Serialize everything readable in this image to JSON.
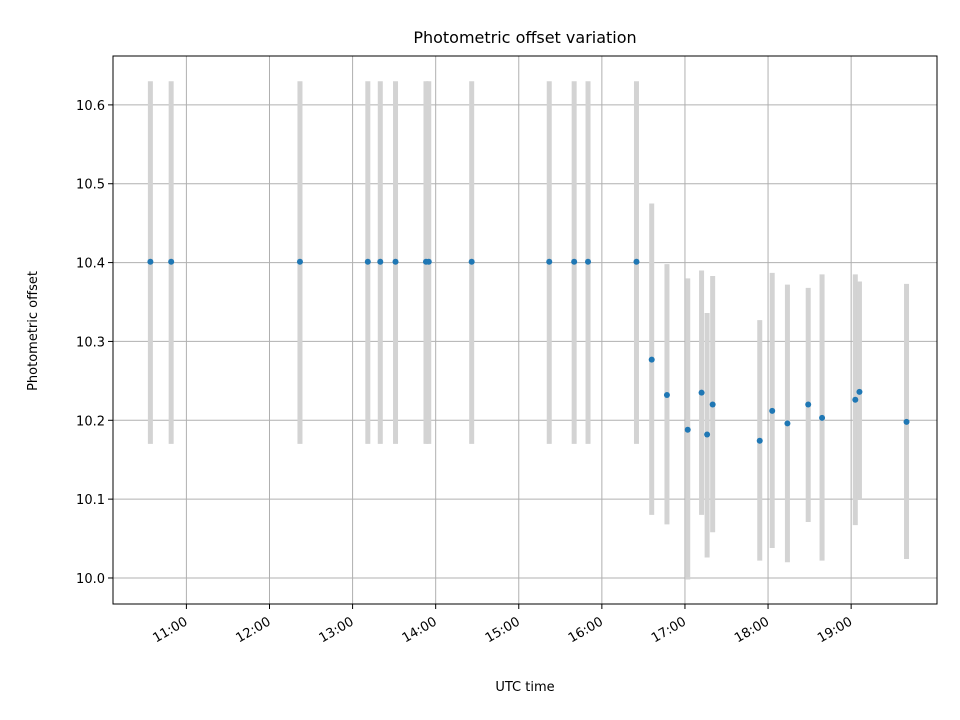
{
  "chart_data": {
    "type": "scatter",
    "title": "Photometric offset variation",
    "xlabel": "UTC time",
    "ylabel": "Photometric offset",
    "x_ticks": [
      "11:00",
      "12:00",
      "13:00",
      "14:00",
      "15:00",
      "16:00",
      "17:00",
      "18:00",
      "19:00"
    ],
    "y_ticks": [
      "10.0",
      "10.1",
      "10.2",
      "10.3",
      "10.4",
      "10.5",
      "10.6"
    ],
    "xlim": [
      "10:07",
      "20:02"
    ],
    "ylim": [
      9.967,
      10.662
    ],
    "grid": true,
    "colors": {
      "point": "#1f77b4",
      "errorbar": "#d3d3d3",
      "grid": "#b0b0b0"
    },
    "points": [
      {
        "time": "10:34",
        "y": 10.401,
        "ylow": 10.17,
        "yhigh": 10.63
      },
      {
        "time": "10:49",
        "y": 10.401,
        "ylow": 10.17,
        "yhigh": 10.63
      },
      {
        "time": "12:22",
        "y": 10.401,
        "ylow": 10.17,
        "yhigh": 10.63
      },
      {
        "time": "13:11",
        "y": 10.401,
        "ylow": 10.17,
        "yhigh": 10.63
      },
      {
        "time": "13:20",
        "y": 10.401,
        "ylow": 10.17,
        "yhigh": 10.63
      },
      {
        "time": "13:31",
        "y": 10.401,
        "ylow": 10.17,
        "yhigh": 10.63
      },
      {
        "time": "13:53",
        "y": 10.401,
        "ylow": 10.17,
        "yhigh": 10.63
      },
      {
        "time": "13:55",
        "y": 10.401,
        "ylow": 10.17,
        "yhigh": 10.63
      },
      {
        "time": "14:26",
        "y": 10.401,
        "ylow": 10.17,
        "yhigh": 10.63
      },
      {
        "time": "15:22",
        "y": 10.401,
        "ylow": 10.17,
        "yhigh": 10.63
      },
      {
        "time": "15:40",
        "y": 10.401,
        "ylow": 10.17,
        "yhigh": 10.63
      },
      {
        "time": "15:50",
        "y": 10.401,
        "ylow": 10.17,
        "yhigh": 10.63
      },
      {
        "time": "16:25",
        "y": 10.401,
        "ylow": 10.17,
        "yhigh": 10.63
      },
      {
        "time": "16:36",
        "y": 10.277,
        "ylow": 10.08,
        "yhigh": 10.475
      },
      {
        "time": "16:47",
        "y": 10.232,
        "ylow": 10.068,
        "yhigh": 10.398
      },
      {
        "time": "17:02",
        "y": 10.188,
        "ylow": 9.998,
        "yhigh": 10.38
      },
      {
        "time": "17:12",
        "y": 10.235,
        "ylow": 10.08,
        "yhigh": 10.39
      },
      {
        "time": "17:16",
        "y": 10.182,
        "ylow": 10.026,
        "yhigh": 10.336
      },
      {
        "time": "17:20",
        "y": 10.22,
        "ylow": 10.058,
        "yhigh": 10.383
      },
      {
        "time": "17:54",
        "y": 10.174,
        "ylow": 10.022,
        "yhigh": 10.327
      },
      {
        "time": "18:03",
        "y": 10.212,
        "ylow": 10.038,
        "yhigh": 10.387
      },
      {
        "time": "18:14",
        "y": 10.196,
        "ylow": 10.02,
        "yhigh": 10.372
      },
      {
        "time": "18:29",
        "y": 10.22,
        "ylow": 10.071,
        "yhigh": 10.368
      },
      {
        "time": "18:39",
        "y": 10.203,
        "ylow": 10.022,
        "yhigh": 10.385
      },
      {
        "time": "19:03",
        "y": 10.226,
        "ylow": 10.067,
        "yhigh": 10.385
      },
      {
        "time": "19:06",
        "y": 10.236,
        "ylow": 10.1,
        "yhigh": 10.376
      },
      {
        "time": "19:40",
        "y": 10.198,
        "ylow": 10.024,
        "yhigh": 10.373
      }
    ]
  }
}
